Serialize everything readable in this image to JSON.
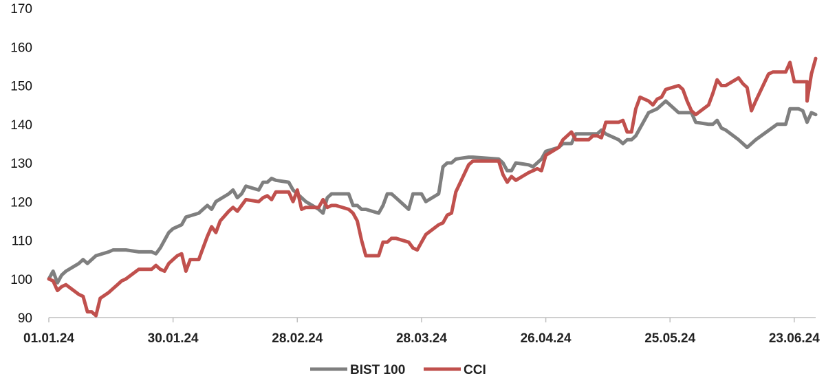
{
  "chart_data": {
    "type": "line",
    "title": "",
    "xlabel": "",
    "ylabel": "",
    "ylim": [
      90,
      170
    ],
    "yticks": [
      90,
      100,
      110,
      120,
      130,
      140,
      150,
      160,
      170
    ],
    "x_start": "01.01.24",
    "x_end": "28.06.24",
    "x_ticks": [
      "01.01.24",
      "30.01.24",
      "28.02.24",
      "28.03.24",
      "26.04.24",
      "25.05.24",
      "23.06.24"
    ],
    "grid": false,
    "legend_position": "bottom",
    "series": [
      {
        "name": "BIST 100",
        "color": "#7f7f7f",
        "points": [
          [
            "01.01.24",
            100
          ],
          [
            "02.01.24",
            102
          ],
          [
            "03.01.24",
            99
          ],
          [
            "04.01.24",
            101
          ],
          [
            "05.01.24",
            102
          ],
          [
            "08.01.24",
            104
          ],
          [
            "09.01.24",
            105
          ],
          [
            "10.01.24",
            104
          ],
          [
            "11.01.24",
            105
          ],
          [
            "12.01.24",
            106
          ],
          [
            "15.01.24",
            107
          ],
          [
            "16.01.24",
            107.5
          ],
          [
            "17.01.24",
            107.5
          ],
          [
            "18.01.24",
            107.5
          ],
          [
            "19.01.24",
            107.5
          ],
          [
            "22.01.24",
            107
          ],
          [
            "23.01.24",
            107
          ],
          [
            "24.01.24",
            107
          ],
          [
            "25.01.24",
            107
          ],
          [
            "26.01.24",
            106.5
          ],
          [
            "27.01.24",
            108
          ],
          [
            "28.01.24",
            110
          ],
          [
            "29.01.24",
            112
          ],
          [
            "30.01.24",
            113
          ],
          [
            "31.01.24",
            113.5
          ],
          [
            "01.02.24",
            114
          ],
          [
            "02.02.24",
            116
          ],
          [
            "05.02.24",
            117
          ],
          [
            "06.02.24",
            118
          ],
          [
            "07.02.24",
            119
          ],
          [
            "08.02.24",
            118
          ],
          [
            "09.02.24",
            120
          ],
          [
            "12.02.24",
            122
          ],
          [
            "13.02.24",
            123
          ],
          [
            "14.02.24",
            121
          ],
          [
            "15.02.24",
            122
          ],
          [
            "16.02.24",
            124
          ],
          [
            "19.02.24",
            123
          ],
          [
            "20.02.24",
            125
          ],
          [
            "21.02.24",
            125
          ],
          [
            "22.02.24",
            126
          ],
          [
            "23.02.24",
            125.5
          ],
          [
            "26.02.24",
            125
          ],
          [
            "27.02.24",
            123
          ],
          [
            "28.02.24",
            122
          ],
          [
            "29.02.24",
            121
          ],
          [
            "01.03.24",
            120
          ],
          [
            "04.03.24",
            118
          ],
          [
            "05.03.24",
            117
          ],
          [
            "06.03.24",
            121
          ],
          [
            "07.03.24",
            122
          ],
          [
            "08.03.24",
            122
          ],
          [
            "11.03.24",
            122
          ],
          [
            "12.03.24",
            119
          ],
          [
            "13.03.24",
            119
          ],
          [
            "14.03.24",
            118
          ],
          [
            "15.03.24",
            118
          ],
          [
            "18.03.24",
            117
          ],
          [
            "19.03.24",
            119
          ],
          [
            "20.03.24",
            122
          ],
          [
            "21.03.24",
            122
          ],
          [
            "22.03.24",
            121
          ],
          [
            "25.03.24",
            118
          ],
          [
            "26.03.24",
            122
          ],
          [
            "27.03.24",
            122
          ],
          [
            "28.03.24",
            122
          ],
          [
            "29.03.24",
            120
          ],
          [
            "01.04.24",
            122
          ],
          [
            "02.04.24",
            129
          ],
          [
            "03.04.24",
            130
          ],
          [
            "04.04.24",
            130
          ],
          [
            "05.04.24",
            131
          ],
          [
            "08.04.24",
            131.5
          ],
          [
            "09.04.24",
            131.5
          ],
          [
            "15.04.24",
            131
          ],
          [
            "16.04.24",
            130
          ],
          [
            "17.04.24",
            128
          ],
          [
            "18.04.24",
            128
          ],
          [
            "19.04.24",
            130
          ],
          [
            "22.04.24",
            129.5
          ],
          [
            "23.04.24",
            129
          ],
          [
            "24.04.24",
            130
          ],
          [
            "25.04.24",
            131
          ],
          [
            "26.04.24",
            133
          ],
          [
            "29.04.24",
            134
          ],
          [
            "30.04.24",
            135
          ],
          [
            "02.05.24",
            135
          ],
          [
            "03.05.24",
            137.5
          ],
          [
            "06.05.24",
            137.5
          ],
          [
            "07.05.24",
            137.5
          ],
          [
            "08.05.24",
            137.5
          ],
          [
            "09.05.24",
            138.5
          ],
          [
            "10.05.24",
            137.5
          ],
          [
            "13.05.24",
            136
          ],
          [
            "14.05.24",
            135
          ],
          [
            "15.05.24",
            136
          ],
          [
            "16.05.24",
            136
          ],
          [
            "17.05.24",
            137
          ],
          [
            "20.05.24",
            143
          ],
          [
            "21.05.24",
            143.5
          ],
          [
            "22.05.24",
            144
          ],
          [
            "23.05.24",
            145
          ],
          [
            "24.05.24",
            146
          ],
          [
            "27.05.24",
            143
          ],
          [
            "28.05.24",
            143
          ],
          [
            "29.05.24",
            143
          ],
          [
            "30.05.24",
            143
          ],
          [
            "31.05.24",
            140.5
          ],
          [
            "03.06.24",
            140
          ],
          [
            "04.06.24",
            140
          ],
          [
            "05.06.24",
            141
          ],
          [
            "06.06.24",
            139
          ],
          [
            "07.06.24",
            138.5
          ],
          [
            "10.06.24",
            136
          ],
          [
            "11.06.24",
            135
          ],
          [
            "12.06.24",
            134
          ],
          [
            "13.06.24",
            135
          ],
          [
            "14.06.24",
            136
          ],
          [
            "19.06.24",
            140
          ],
          [
            "20.06.24",
            140
          ],
          [
            "21.06.24",
            140
          ],
          [
            "22.06.24",
            144
          ],
          [
            "23.06.24",
            144
          ],
          [
            "24.06.24",
            144
          ],
          [
            "25.06.24",
            143.5
          ],
          [
            "26.06.24",
            140.5
          ],
          [
            "27.06.24",
            143
          ],
          [
            "28.06.24",
            142.5
          ]
        ]
      },
      {
        "name": "CCI",
        "color": "#c0504d",
        "points": [
          [
            "01.01.24",
            100
          ],
          [
            "02.01.24",
            99.5
          ],
          [
            "03.01.24",
            97
          ],
          [
            "04.01.24",
            98
          ],
          [
            "05.01.24",
            98.5
          ],
          [
            "08.01.24",
            96
          ],
          [
            "09.01.24",
            95.5
          ],
          [
            "10.01.24",
            91.5
          ],
          [
            "11.01.24",
            91.5
          ],
          [
            "12.01.24",
            90.5
          ],
          [
            "13.01.24",
            95
          ],
          [
            "15.01.24",
            96.5
          ],
          [
            "16.01.24",
            97.5
          ],
          [
            "17.01.24",
            98.5
          ],
          [
            "18.01.24",
            99.5
          ],
          [
            "19.01.24",
            100
          ],
          [
            "22.01.24",
            102.5
          ],
          [
            "23.01.24",
            102.5
          ],
          [
            "24.01.24",
            102.5
          ],
          [
            "25.01.24",
            102.5
          ],
          [
            "26.01.24",
            103.5
          ],
          [
            "27.01.24",
            102.5
          ],
          [
            "28.01.24",
            102
          ],
          [
            "29.01.24",
            104
          ],
          [
            "30.01.24",
            105
          ],
          [
            "31.01.24",
            106
          ],
          [
            "01.02.24",
            106.5
          ],
          [
            "02.02.24",
            102
          ],
          [
            "03.02.24",
            105
          ],
          [
            "05.02.24",
            105
          ],
          [
            "06.02.24",
            108
          ],
          [
            "07.02.24",
            111
          ],
          [
            "08.02.24",
            113.5
          ],
          [
            "09.02.24",
            112
          ],
          [
            "10.02.24",
            115
          ],
          [
            "12.02.24",
            117.5
          ],
          [
            "13.02.24",
            118.5
          ],
          [
            "14.02.24",
            117.5
          ],
          [
            "15.02.24",
            119
          ],
          [
            "16.02.24",
            120.5
          ],
          [
            "19.02.24",
            120
          ],
          [
            "20.02.24",
            121
          ],
          [
            "21.02.24",
            121.5
          ],
          [
            "22.02.24",
            120.5
          ],
          [
            "23.02.24",
            122.5
          ],
          [
            "26.02.24",
            122.5
          ],
          [
            "27.02.24",
            120
          ],
          [
            "28.02.24",
            123
          ],
          [
            "29.02.24",
            118
          ],
          [
            "01.03.24",
            118.5
          ],
          [
            "04.03.24",
            118.5
          ],
          [
            "05.03.24",
            120.5
          ],
          [
            "06.03.24",
            118.5
          ],
          [
            "07.03.24",
            119
          ],
          [
            "08.03.24",
            119
          ],
          [
            "11.03.24",
            118
          ],
          [
            "12.03.24",
            117
          ],
          [
            "13.03.24",
            115
          ],
          [
            "14.03.24",
            110
          ],
          [
            "15.03.24",
            106
          ],
          [
            "18.03.24",
            106
          ],
          [
            "19.03.24",
            109.5
          ],
          [
            "20.03.24",
            109.5
          ],
          [
            "21.03.24",
            110.5
          ],
          [
            "22.03.24",
            110.5
          ],
          [
            "25.03.24",
            109.5
          ],
          [
            "26.03.24",
            108
          ],
          [
            "27.03.24",
            107.5
          ],
          [
            "28.03.24",
            109.5
          ],
          [
            "29.03.24",
            111.5
          ],
          [
            "01.04.24",
            114
          ],
          [
            "02.04.24",
            114.5
          ],
          [
            "03.04.24",
            116.5
          ],
          [
            "04.04.24",
            117
          ],
          [
            "05.04.24",
            122.5
          ],
          [
            "08.04.24",
            129.5
          ],
          [
            "09.04.24",
            130.5
          ],
          [
            "15.04.24",
            130.5
          ],
          [
            "16.04.24",
            127
          ],
          [
            "17.04.24",
            125
          ],
          [
            "18.04.24",
            126.5
          ],
          [
            "19.04.24",
            125.5
          ],
          [
            "22.04.24",
            127.5
          ],
          [
            "23.04.24",
            128
          ],
          [
            "24.04.24",
            128.5
          ],
          [
            "25.04.24",
            128
          ],
          [
            "26.04.24",
            132
          ],
          [
            "29.04.24",
            134
          ],
          [
            "30.04.24",
            136
          ],
          [
            "02.05.24",
            138
          ],
          [
            "03.05.24",
            136
          ],
          [
            "06.05.24",
            136
          ],
          [
            "07.05.24",
            137
          ],
          [
            "08.05.24",
            137
          ],
          [
            "09.05.24",
            136.5
          ],
          [
            "10.05.24",
            140.5
          ],
          [
            "13.05.24",
            140.5
          ],
          [
            "14.05.24",
            141
          ],
          [
            "15.05.24",
            138
          ],
          [
            "16.05.24",
            138
          ],
          [
            "17.05.24",
            144
          ],
          [
            "18.05.24",
            147
          ],
          [
            "20.05.24",
            146
          ],
          [
            "21.05.24",
            145
          ],
          [
            "22.05.24",
            146.5
          ],
          [
            "23.05.24",
            147
          ],
          [
            "24.05.24",
            149
          ],
          [
            "27.05.24",
            150
          ],
          [
            "28.05.24",
            149
          ],
          [
            "29.05.24",
            146
          ],
          [
            "30.05.24",
            143.5
          ],
          [
            "31.05.24",
            142.5
          ],
          [
            "03.06.24",
            145
          ],
          [
            "04.06.24",
            148
          ],
          [
            "05.06.24",
            151.5
          ],
          [
            "06.06.24",
            150
          ],
          [
            "07.06.24",
            150
          ],
          [
            "10.06.24",
            152
          ],
          [
            "11.06.24",
            150.5
          ],
          [
            "12.06.24",
            149.5
          ],
          [
            "13.06.24",
            143.5
          ],
          [
            "14.06.24",
            146
          ],
          [
            "17.06.24",
            153
          ],
          [
            "18.06.24",
            153.5
          ],
          [
            "19.06.24",
            153.5
          ],
          [
            "20.06.24",
            153.5
          ],
          [
            "21.06.24",
            153.5
          ],
          [
            "22.06.24",
            156
          ],
          [
            "23.06.24",
            151
          ],
          [
            "24.06.24",
            151
          ],
          [
            "25.06.24",
            151
          ],
          [
            "26.06.24",
            151
          ],
          [
            "26.06.24",
            146
          ],
          [
            "27.06.24",
            153
          ],
          [
            "28.06.24",
            157
          ]
        ]
      }
    ]
  }
}
